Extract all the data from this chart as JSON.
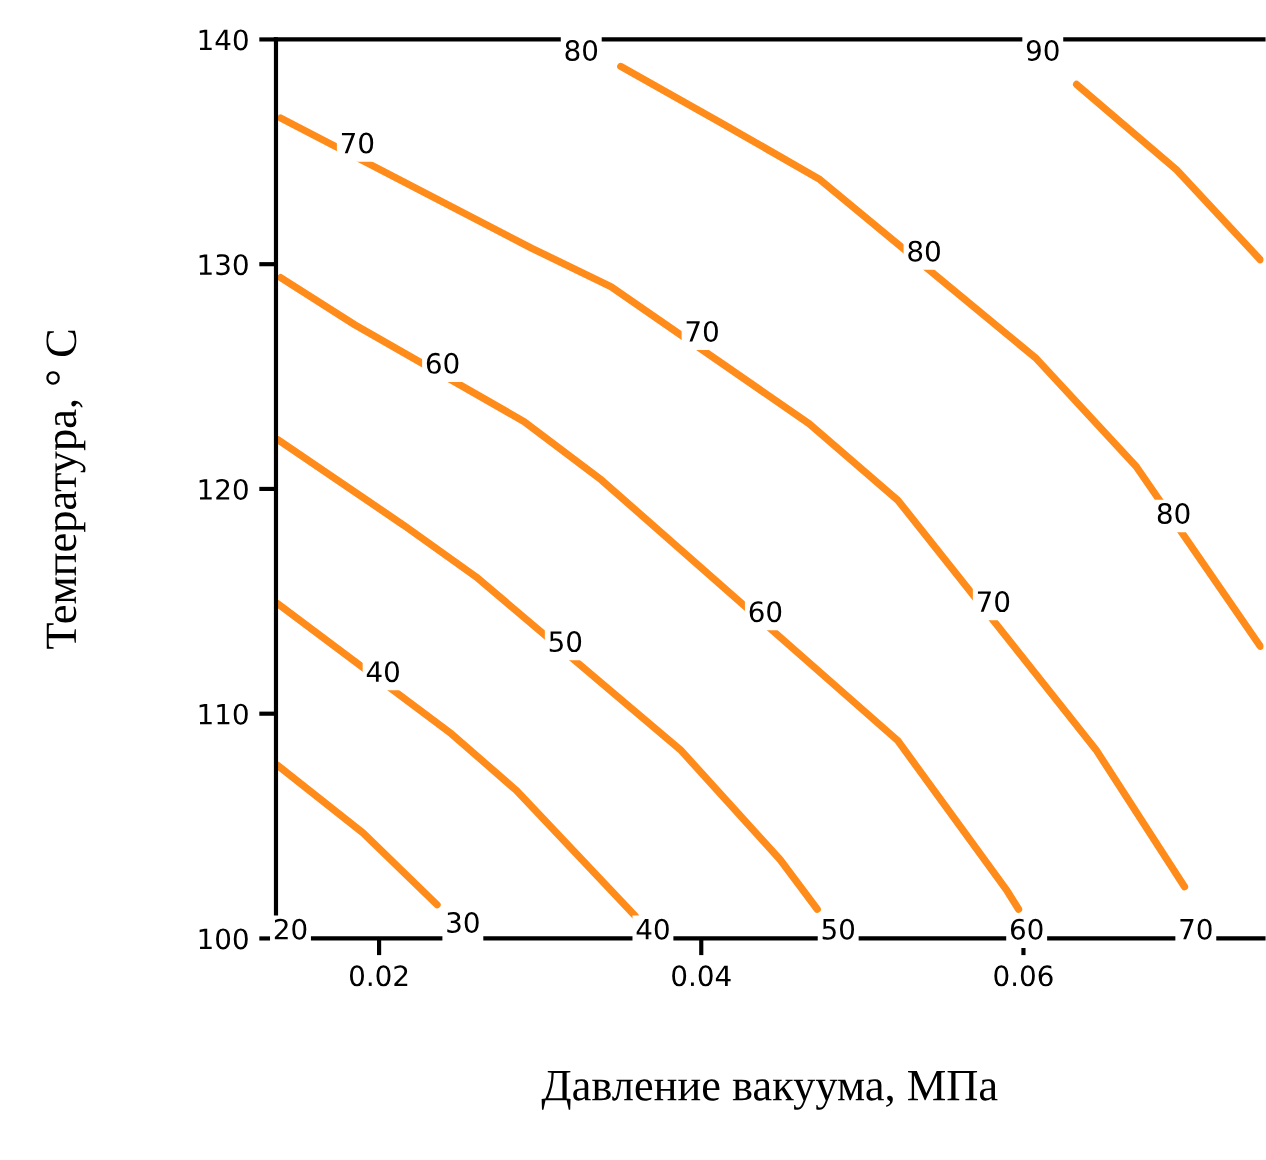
{
  "chart_data": {
    "type": "line",
    "xlabel": "Давление вакуума, МПа",
    "ylabel": "Температура, ° C",
    "xlim": [
      0.0136,
      0.0749
    ],
    "ylim": [
      100,
      140
    ],
    "xticks": [
      {
        "value": 0.02,
        "label": "0.02"
      },
      {
        "value": 0.04,
        "label": "0.04"
      },
      {
        "value": 0.06,
        "label": "0.06"
      }
    ],
    "yticks": [
      100,
      110,
      120,
      130,
      140
    ],
    "grid": false,
    "marker": "none",
    "line_style": "solid",
    "series": [
      {
        "color": "#ff8c1a",
        "x": [
          0.0137,
          0.019,
          0.0236
        ],
        "values": [
          107.7,
          104.7,
          101.5
        ]
      },
      {
        "color": "#ff8c1a",
        "x": [
          0.0137,
          0.0245,
          0.0285,
          0.0359
        ],
        "values": [
          114.9,
          109.1,
          106.6,
          101.0
        ]
      },
      {
        "color": "#ff8c1a",
        "x": [
          0.0137,
          0.0215,
          0.026,
          0.0387,
          0.0449,
          0.0472
        ],
        "values": [
          122.2,
          118.4,
          116.1,
          108.4,
          103.5,
          101.3
        ]
      },
      {
        "color": "#ff8c1a",
        "x": [
          0.0139,
          0.0185,
          0.029,
          0.0338,
          0.0522,
          0.059,
          0.0597
        ],
        "values": [
          129.4,
          127.3,
          123.0,
          120.4,
          108.8,
          102.1,
          101.3
        ]
      },
      {
        "color": "#ff8c1a",
        "x": [
          0.0139,
          0.0295,
          0.0344,
          0.0467,
          0.0522,
          0.0645,
          0.07
        ],
        "values": [
          136.5,
          130.7,
          129.0,
          122.9,
          119.5,
          108.4,
          102.3
        ]
      },
      {
        "color": "#ff8c1a",
        "x": [
          0.035,
          0.0412,
          0.0473,
          0.0608,
          0.067,
          0.0747
        ],
        "values": [
          138.8,
          136.3,
          133.8,
          125.8,
          121.0,
          113.0
        ]
      },
      {
        "color": "#ff8c1a",
        "x": [
          0.0633,
          0.0695,
          0.0747
        ],
        "values": [
          138.0,
          134.2,
          130.2
        ]
      }
    ],
    "annotations": [
      {
        "text": "80",
        "x": 0.03255,
        "y": 139.4
      },
      {
        "text": "90",
        "x": 0.0612,
        "y": 139.4
      },
      {
        "text": "70",
        "x": 0.01865,
        "y": 135.28
      },
      {
        "text": "70",
        "x": 0.04005,
        "y": 126.9
      },
      {
        "text": "80",
        "x": 0.05383,
        "y": 130.47
      },
      {
        "text": "60",
        "x": 0.02394,
        "y": 125.48
      },
      {
        "text": "60",
        "x": 0.04398,
        "y": 114.43
      },
      {
        "text": "70",
        "x": 0.05813,
        "y": 114.88
      },
      {
        "text": "80",
        "x": 0.06932,
        "y": 118.8
      },
      {
        "text": "50",
        "x": 0.03156,
        "y": 113.1
      },
      {
        "text": "40",
        "x": 0.02025,
        "y": 111.76
      },
      {
        "text": "20",
        "x": 0.0145,
        "y": 100.3
      },
      {
        "text": "30",
        "x": 0.0252,
        "y": 100.6
      },
      {
        "text": "40",
        "x": 0.037,
        "y": 100.3
      },
      {
        "text": "50",
        "x": 0.0485,
        "y": 100.3
      },
      {
        "text": "60",
        "x": 0.0602,
        "y": 100.3
      },
      {
        "text": "70",
        "x": 0.0707,
        "y": 100.3
      }
    ]
  }
}
